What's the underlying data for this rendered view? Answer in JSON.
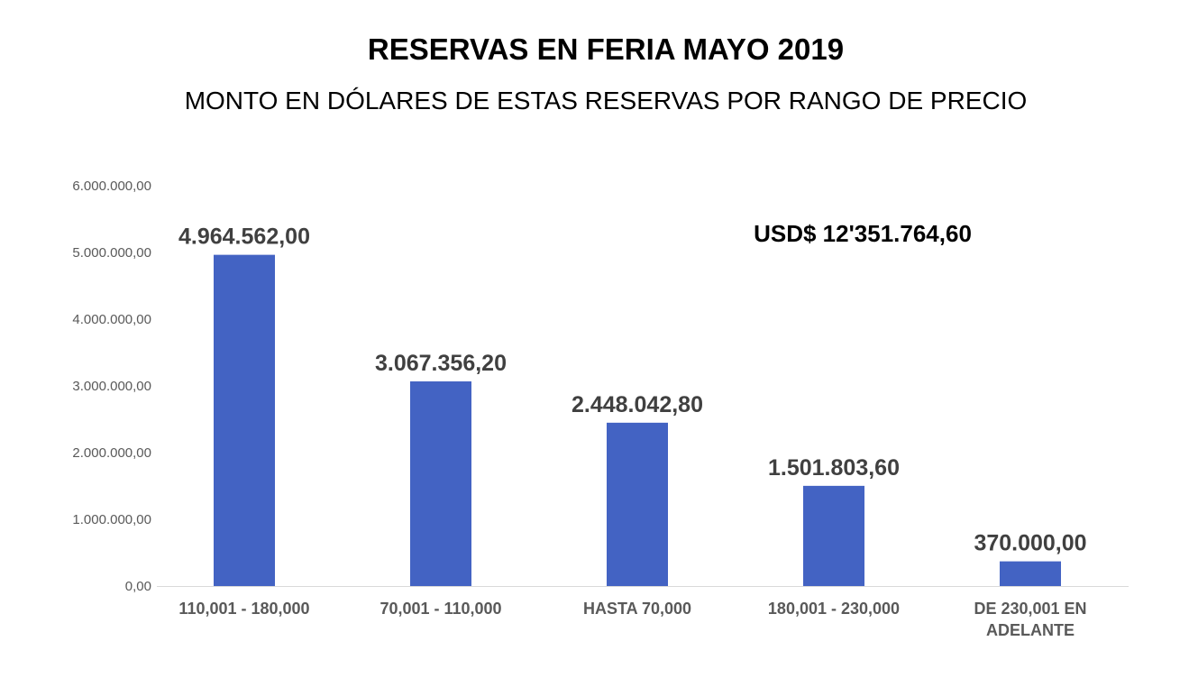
{
  "chart_data": {
    "type": "bar",
    "title": "RESERVAS EN FERIA MAYO 2019",
    "subtitle": "MONTO EN DÓLARES DE ESTAS RESERVAS POR RANGO DE PRECIO",
    "annotation": "USD$ 12'351.764,60",
    "categories": [
      [
        "110,001 - 180,000"
      ],
      [
        "70,001 - 110,000"
      ],
      [
        "HASTA 70,000"
      ],
      [
        "180,001 - 230,000"
      ],
      [
        "DE 230,001 EN",
        "ADELANTE"
      ]
    ],
    "values": [
      4964562.0,
      3067356.2,
      2448042.8,
      1501803.6,
      370000.0
    ],
    "value_labels": [
      "4.964.562,00",
      "3.067.356,20",
      "2.448.042,80",
      "1.501.803,60",
      "370.000,00"
    ],
    "yticks": [
      "0,00",
      "1.000.000,00",
      "2.000.000,00",
      "3.000.000,00",
      "4.000.000,00",
      "5.000.000,00",
      "6.000.000,00"
    ],
    "ylim": [
      0,
      6000000
    ],
    "grid": false,
    "legend": "none",
    "bar_color": "#4363C3"
  }
}
